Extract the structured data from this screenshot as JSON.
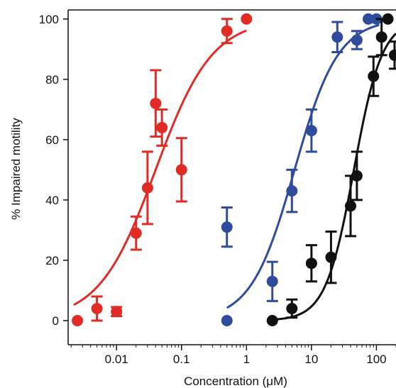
{
  "chart_data": {
    "type": "scatter",
    "title": "",
    "xlabel": "Concentration (μM)",
    "ylabel": "% Impaired motility",
    "xscale": "log",
    "xlim": [
      0.0018,
      200
    ],
    "ylim": [
      -8,
      103
    ],
    "grid": false,
    "x_ticks": [
      0.01,
      0.1,
      1,
      10,
      100
    ],
    "x_tick_labels": [
      "0.01",
      "0.1",
      "1",
      "10",
      "100"
    ],
    "y_ticks": [
      0,
      20,
      40,
      60,
      80,
      100
    ],
    "y_tick_labels": [
      "0",
      "20",
      "40",
      "60",
      "80",
      "100"
    ],
    "series": [
      {
        "color": "#e02b27",
        "points": [
          {
            "x": 0.0025,
            "y": 0,
            "err": null
          },
          {
            "x": 0.005,
            "y": 4,
            "err": 4
          },
          {
            "x": 0.01,
            "y": 3,
            "err": 1.5
          },
          {
            "x": 0.02,
            "y": 29,
            "err": 5.5
          },
          {
            "x": 0.03,
            "y": 44,
            "err": 12
          },
          {
            "x": 0.04,
            "y": 72,
            "err": 11
          },
          {
            "x": 0.05,
            "y": 64,
            "err": 6
          },
          {
            "x": 0.1,
            "y": 50,
            "err": 10.5
          },
          {
            "x": 0.5,
            "y": 96,
            "err": 4
          },
          {
            "x": 1,
            "y": 100,
            "err": null
          }
        ],
        "fit": {
          "ec50": 0.04,
          "hill": 1.0,
          "xmin": 0.0022,
          "xmax": 1.0
        }
      },
      {
        "color": "#2e4c9b",
        "points": [
          {
            "x": 0.5,
            "y": 0,
            "err": null
          },
          {
            "x": 0.5,
            "y": 31,
            "err": 6.5
          },
          {
            "x": 2.5,
            "y": 13,
            "err": 6.5
          },
          {
            "x": 5,
            "y": 43,
            "err": 7
          },
          {
            "x": 10,
            "y": 63,
            "err": 7
          },
          {
            "x": 25,
            "y": 94,
            "err": 5
          },
          {
            "x": 50,
            "y": 93,
            "err": 3
          },
          {
            "x": 75,
            "y": 100,
            "err": null
          },
          {
            "x": 100,
            "y": 100,
            "err": null
          }
        ],
        "fit": {
          "ec50": 5.5,
          "hill": 1.3,
          "xmin": 0.5,
          "xmax": 110
        }
      },
      {
        "color": "#111111",
        "points": [
          {
            "x": 2.5,
            "y": 0,
            "err": null
          },
          {
            "x": 5,
            "y": 4,
            "err": 3
          },
          {
            "x": 10,
            "y": 19,
            "err": 6
          },
          {
            "x": 20,
            "y": 21,
            "err": 8.5
          },
          {
            "x": 40,
            "y": 38,
            "err": 10
          },
          {
            "x": 50,
            "y": 48,
            "err": 8
          },
          {
            "x": 90,
            "y": 81,
            "err": 6.5
          },
          {
            "x": 120,
            "y": 94,
            "err": 6
          },
          {
            "x": 150,
            "y": 100,
            "err": null
          },
          {
            "x": 190,
            "y": 88,
            "err": 4.5
          }
        ],
        "fit": {
          "ec50": 45,
          "hill": 2.0,
          "xmin": 2.5,
          "xmax": 200
        }
      }
    ]
  }
}
